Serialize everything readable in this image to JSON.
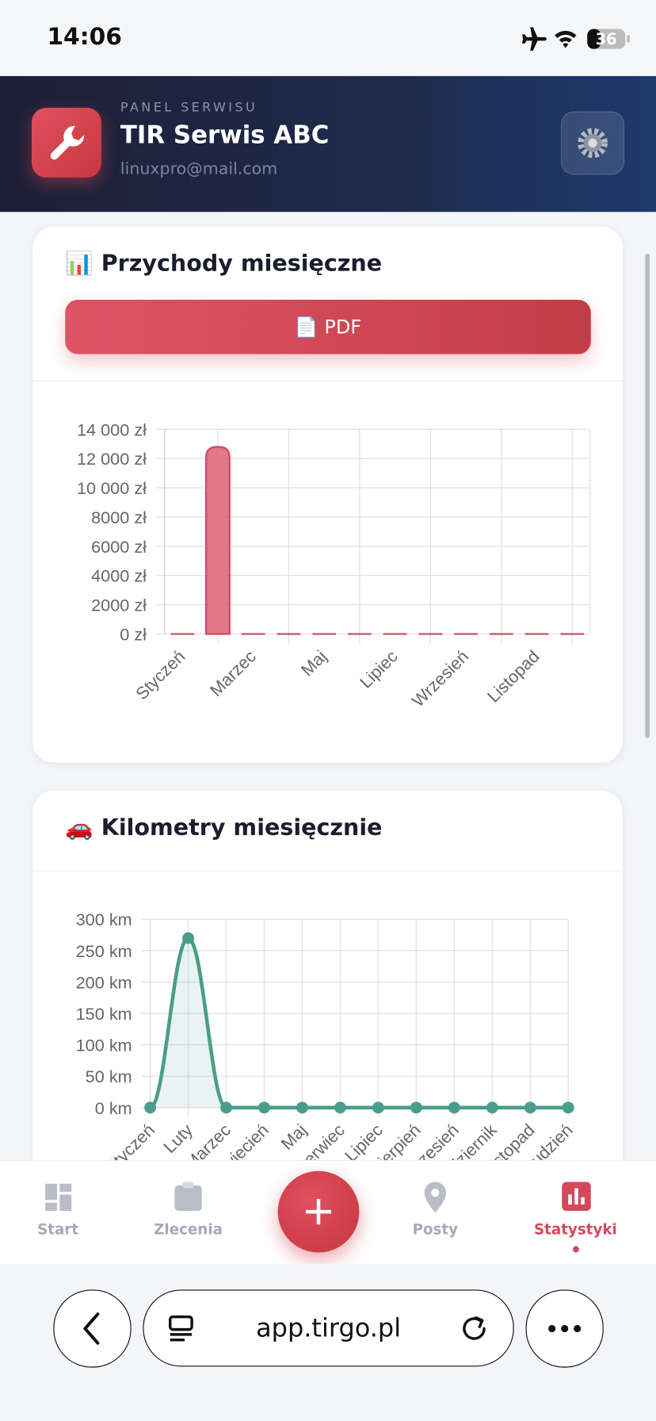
{
  "status_bar": {
    "time": "14:06",
    "battery": "36"
  },
  "header": {
    "kicker": "PANEL SERWISU",
    "title": "TIR Serwis ABC",
    "email": "linuxpro@mail.com"
  },
  "cards": [
    {
      "title": "📊 Przychody miesięczne",
      "button": "📄 PDF",
      "chart": {
        "type": "bar",
        "categories": [
          "Styczeń",
          null,
          "Marzec",
          null,
          "Maj",
          null,
          "Lipiec",
          null,
          "Wrzesień",
          null,
          "Listopad",
          null
        ],
        "values": [
          0,
          12800,
          0,
          0,
          0,
          0,
          0,
          0,
          0,
          0,
          0,
          0
        ],
        "color": "#e0697c",
        "ylim": [
          0,
          14000
        ],
        "yticks": [
          {
            "value": 0,
            "label": "0 zł"
          },
          {
            "value": 2000,
            "label": "2000 zł"
          },
          {
            "value": 4000,
            "label": "4000 zł"
          },
          {
            "value": 6000,
            "label": "6000 zł"
          },
          {
            "value": 8000,
            "label": "8000 zł"
          },
          {
            "value": 10000,
            "label": "10 000 zł"
          },
          {
            "value": 12000,
            "label": "12 000 zł"
          },
          {
            "value": 14000,
            "label": "14 000 zł"
          }
        ],
        "grid": true
      }
    },
    {
      "title": "🚗 Kilometry miesięcznie",
      "chart": {
        "type": "line",
        "categories": [
          "Styczeń",
          "Luty",
          "Marzec",
          "Kwiecień",
          "Maj",
          "Czerwiec",
          "Lipiec",
          "Sierpień",
          "Wrzesień",
          "Październik",
          "Listopad",
          "Grudzień"
        ],
        "values": [
          0,
          270,
          0,
          0,
          0,
          0,
          0,
          0,
          0,
          0,
          0,
          0
        ],
        "color": "#4a9d8a",
        "ylim": [
          0,
          300
        ],
        "yticks": [
          {
            "value": 0,
            "label": "0 km"
          },
          {
            "value": 50,
            "label": "50 km"
          },
          {
            "value": 100,
            "label": "100 km"
          },
          {
            "value": 150,
            "label": "150 km"
          },
          {
            "value": 200,
            "label": "200 km"
          },
          {
            "value": 250,
            "label": "250 km"
          },
          {
            "value": 300,
            "label": "300 km"
          }
        ],
        "grid": true
      }
    }
  ],
  "nav": {
    "items": [
      {
        "label": "Start"
      },
      {
        "label": "Zlecenia"
      },
      {
        "label": "Posty"
      },
      {
        "label": "Statystyki",
        "active": true
      }
    ]
  },
  "browser": {
    "url": "app.tirgo.pl"
  }
}
